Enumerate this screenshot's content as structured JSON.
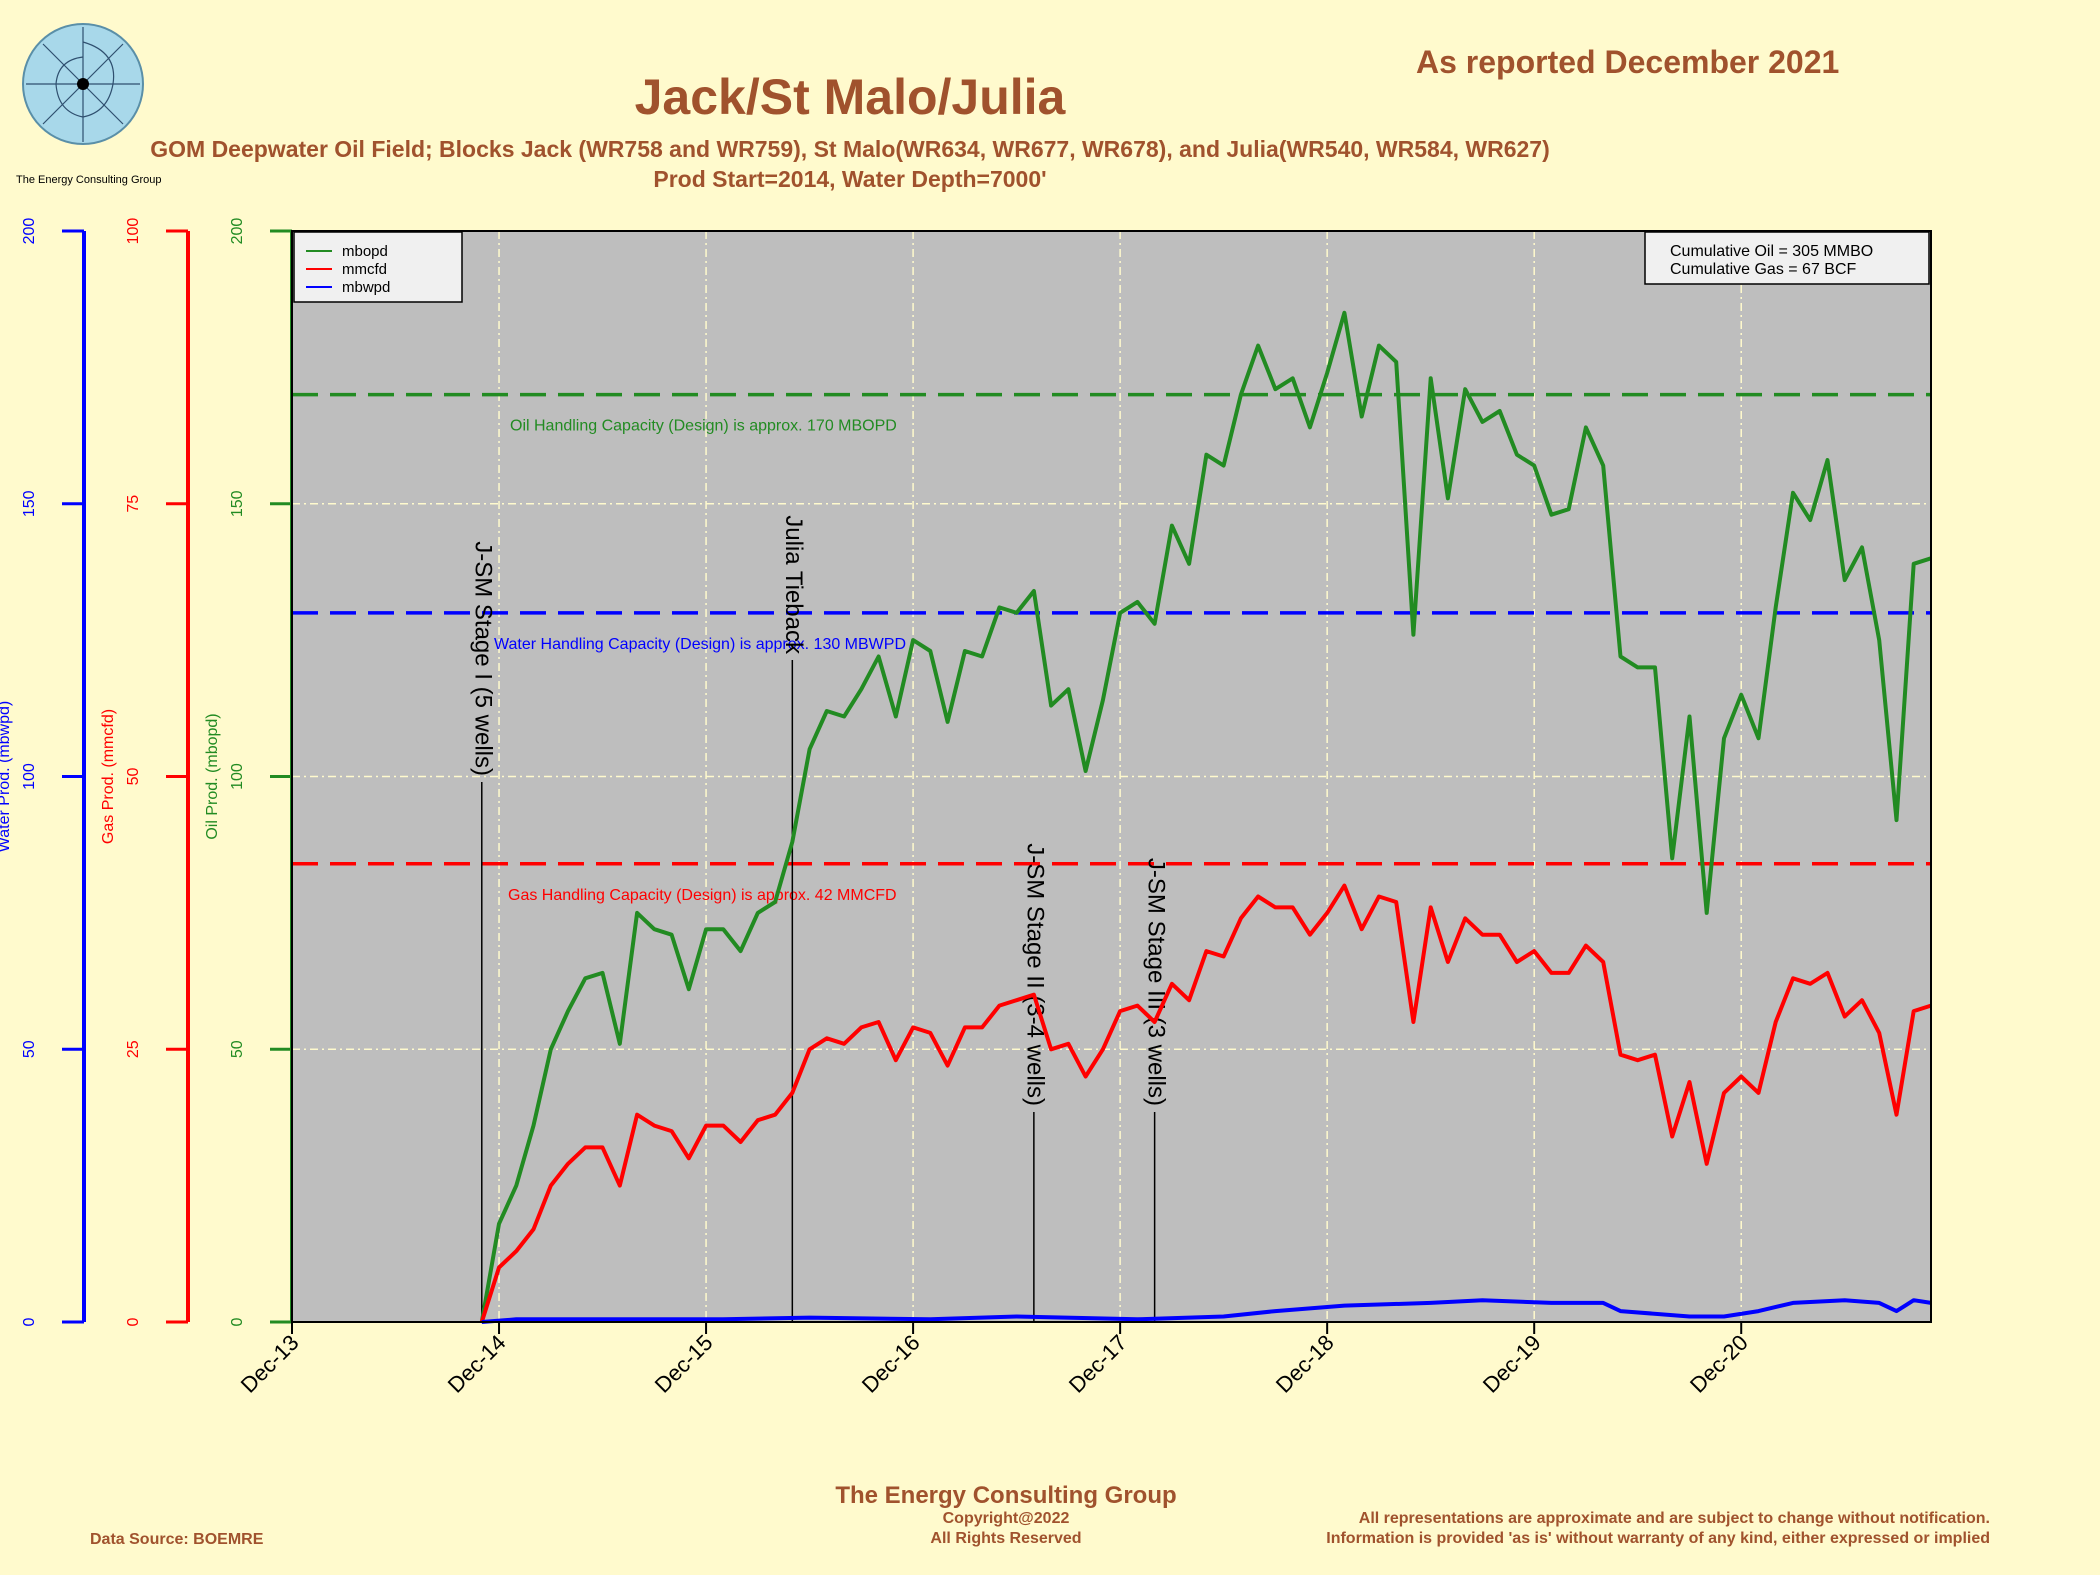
{
  "header": {
    "title": "Jack/St Malo/Julia",
    "reported": "As reported December 2021",
    "subtitle1": "GOM Deepwater Oil Field; Blocks Jack (WR758 and WR759), St Malo(WR634, WR677, WR678), and Julia(WR540, WR584, WR627)",
    "subtitle2": "Prod Start=2014, Water Depth=7000'",
    "logo_caption": "The Energy Consulting Group"
  },
  "footer": {
    "company": "The Energy Consulting Group",
    "copyright": "Copyright@2022",
    "rights": "All Rights Reserved",
    "source": "Data Source: BOEMRE",
    "disclaimer1": "All representations are approximate and are subject to change without notification.",
    "disclaimer2": "Information is provided 'as is' without warranty of any kind, either expressed or implied"
  },
  "colors": {
    "oil": "#228B22",
    "gas": "#FF0000",
    "water": "#0000FF",
    "plot_bg": "#BEBEBE",
    "page_bg": "#FFFACD",
    "brand": "#A0522D"
  },
  "chart_data": {
    "type": "line",
    "x_ticks": [
      "Dec-13",
      "Dec-14",
      "Dec-15",
      "Dec-16",
      "Dec-17",
      "Dec-18",
      "Dec-19",
      "Dec-20"
    ],
    "x_range": [
      "2013-12",
      "2021-11"
    ],
    "axes": {
      "oil": {
        "label": "Oil Prod. (mbopd)",
        "range": [
          0,
          200
        ],
        "ticks": [
          0,
          50,
          100,
          150,
          200
        ]
      },
      "gas": {
        "label": "Gas Prod. (mmcfd)",
        "range": [
          0,
          100
        ],
        "ticks": [
          0,
          25,
          50,
          75,
          100
        ]
      },
      "water": {
        "label": "Water Prod. (mbwpd)",
        "range": [
          0,
          200
        ],
        "ticks": [
          0,
          50,
          100,
          150,
          200
        ]
      }
    },
    "grid": true,
    "legend_position": "top-left",
    "legend": [
      "mbopd",
      "mmcfd",
      "mbwpd"
    ],
    "cumulative": [
      "Cumulative Oil = 305  MMBO",
      "Cumulative Gas = 67  BCF"
    ],
    "series": [
      {
        "name": "mbopd",
        "axis": "oil",
        "color": "#228B22",
        "values": [
          [
            "2014-11",
            0
          ],
          [
            "2014-12",
            18
          ],
          [
            "2015-01",
            25
          ],
          [
            "2015-02",
            36
          ],
          [
            "2015-03",
            50
          ],
          [
            "2015-04",
            57
          ],
          [
            "2015-05",
            63
          ],
          [
            "2015-06",
            64
          ],
          [
            "2015-07",
            51
          ],
          [
            "2015-08",
            75
          ],
          [
            "2015-09",
            72
          ],
          [
            "2015-10",
            71
          ],
          [
            "2015-11",
            61
          ],
          [
            "2015-12",
            72
          ],
          [
            "2016-01",
            72
          ],
          [
            "2016-02",
            68
          ],
          [
            "2016-03",
            75
          ],
          [
            "2016-04",
            77
          ],
          [
            "2016-05",
            88
          ],
          [
            "2016-06",
            105
          ],
          [
            "2016-07",
            112
          ],
          [
            "2016-08",
            111
          ],
          [
            "2016-09",
            116
          ],
          [
            "2016-10",
            122
          ],
          [
            "2016-11",
            111
          ],
          [
            "2016-12",
            125
          ],
          [
            "2017-01",
            123
          ],
          [
            "2017-02",
            110
          ],
          [
            "2017-03",
            123
          ],
          [
            "2017-04",
            122
          ],
          [
            "2017-05",
            131
          ],
          [
            "2017-06",
            130
          ],
          [
            "2017-07",
            134
          ],
          [
            "2017-08",
            113
          ],
          [
            "2017-09",
            116
          ],
          [
            "2017-10",
            101
          ],
          [
            "2017-11",
            114
          ],
          [
            "2017-12",
            130
          ],
          [
            "2018-01",
            132
          ],
          [
            "2018-02",
            128
          ],
          [
            "2018-03",
            146
          ],
          [
            "2018-04",
            139
          ],
          [
            "2018-05",
            159
          ],
          [
            "2018-06",
            157
          ],
          [
            "2018-07",
            170
          ],
          [
            "2018-08",
            179
          ],
          [
            "2018-09",
            171
          ],
          [
            "2018-10",
            173
          ],
          [
            "2018-11",
            164
          ],
          [
            "2018-12",
            174
          ],
          [
            "2019-01",
            185
          ],
          [
            "2019-02",
            166
          ],
          [
            "2019-03",
            179
          ],
          [
            "2019-04",
            176
          ],
          [
            "2019-05",
            126
          ],
          [
            "2019-06",
            173
          ],
          [
            "2019-07",
            151
          ],
          [
            "2019-08",
            171
          ],
          [
            "2019-09",
            165
          ],
          [
            "2019-10",
            167
          ],
          [
            "2019-11",
            159
          ],
          [
            "2019-12",
            157
          ],
          [
            "2020-01",
            148
          ],
          [
            "2020-02",
            149
          ],
          [
            "2020-03",
            164
          ],
          [
            "2020-04",
            157
          ],
          [
            "2020-05",
            122
          ],
          [
            "2020-06",
            120
          ],
          [
            "2020-07",
            120
          ],
          [
            "2020-08",
            85
          ],
          [
            "2020-09",
            111
          ],
          [
            "2020-10",
            75
          ],
          [
            "2020-11",
            107
          ],
          [
            "2020-12",
            115
          ],
          [
            "2021-01",
            107
          ],
          [
            "2021-02",
            131
          ],
          [
            "2021-03",
            152
          ],
          [
            "2021-04",
            147
          ],
          [
            "2021-05",
            158
          ],
          [
            "2021-06",
            136
          ],
          [
            "2021-07",
            142
          ],
          [
            "2021-08",
            125
          ],
          [
            "2021-09",
            92
          ],
          [
            "2021-10",
            139
          ],
          [
            "2021-11",
            140
          ]
        ]
      },
      {
        "name": "mmcfd",
        "axis": "gas",
        "color": "#FF0000",
        "values": [
          [
            "2014-11",
            0
          ],
          [
            "2014-12",
            5
          ],
          [
            "2015-01",
            6.5
          ],
          [
            "2015-02",
            8.5
          ],
          [
            "2015-03",
            12.5
          ],
          [
            "2015-04",
            14.5
          ],
          [
            "2015-05",
            16
          ],
          [
            "2015-06",
            16
          ],
          [
            "2015-07",
            12.5
          ],
          [
            "2015-08",
            19
          ],
          [
            "2015-09",
            18
          ],
          [
            "2015-10",
            17.5
          ],
          [
            "2015-11",
            15
          ],
          [
            "2015-12",
            18
          ],
          [
            "2016-01",
            18
          ],
          [
            "2016-02",
            16.5
          ],
          [
            "2016-03",
            18.5
          ],
          [
            "2016-04",
            19
          ],
          [
            "2016-05",
            21
          ],
          [
            "2016-06",
            25
          ],
          [
            "2016-07",
            26
          ],
          [
            "2016-08",
            25.5
          ],
          [
            "2016-09",
            27
          ],
          [
            "2016-10",
            27.5
          ],
          [
            "2016-11",
            24
          ],
          [
            "2016-12",
            27
          ],
          [
            "2017-01",
            26.5
          ],
          [
            "2017-02",
            23.5
          ],
          [
            "2017-03",
            27
          ],
          [
            "2017-04",
            27
          ],
          [
            "2017-05",
            29
          ],
          [
            "2017-06",
            29.5
          ],
          [
            "2017-07",
            30
          ],
          [
            "2017-08",
            25
          ],
          [
            "2017-09",
            25.5
          ],
          [
            "2017-10",
            22.5
          ],
          [
            "2017-11",
            25
          ],
          [
            "2017-12",
            28.5
          ],
          [
            "2018-01",
            29
          ],
          [
            "2018-02",
            27.5
          ],
          [
            "2018-03",
            31
          ],
          [
            "2018-04",
            29.5
          ],
          [
            "2018-05",
            34
          ],
          [
            "2018-06",
            33.5
          ],
          [
            "2018-07",
            37
          ],
          [
            "2018-08",
            39
          ],
          [
            "2018-09",
            38
          ],
          [
            "2018-10",
            38
          ],
          [
            "2018-11",
            35.5
          ],
          [
            "2018-12",
            37.5
          ],
          [
            "2019-01",
            40
          ],
          [
            "2019-02",
            36
          ],
          [
            "2019-03",
            39
          ],
          [
            "2019-04",
            38.5
          ],
          [
            "2019-05",
            27.5
          ],
          [
            "2019-06",
            38
          ],
          [
            "2019-07",
            33
          ],
          [
            "2019-08",
            37
          ],
          [
            "2019-09",
            35.5
          ],
          [
            "2019-10",
            35.5
          ],
          [
            "2019-11",
            33
          ],
          [
            "2019-12",
            34
          ],
          [
            "2020-01",
            32
          ],
          [
            "2020-02",
            32
          ],
          [
            "2020-03",
            34.5
          ],
          [
            "2020-04",
            33
          ],
          [
            "2020-05",
            24.5
          ],
          [
            "2020-06",
            24
          ],
          [
            "2020-07",
            24.5
          ],
          [
            "2020-08",
            17
          ],
          [
            "2020-09",
            22
          ],
          [
            "2020-10",
            14.5
          ],
          [
            "2020-11",
            21
          ],
          [
            "2020-12",
            22.5
          ],
          [
            "2021-01",
            21
          ],
          [
            "2021-02",
            27.5
          ],
          [
            "2021-03",
            31.5
          ],
          [
            "2021-04",
            31
          ],
          [
            "2021-05",
            32
          ],
          [
            "2021-06",
            28
          ],
          [
            "2021-07",
            29.5
          ],
          [
            "2021-08",
            26.5
          ],
          [
            "2021-09",
            19
          ],
          [
            "2021-10",
            28.5
          ],
          [
            "2021-11",
            29
          ]
        ]
      },
      {
        "name": "mbwpd",
        "axis": "water",
        "color": "#0000FF",
        "values": [
          [
            "2014-11",
            0
          ],
          [
            "2015-01",
            0.5
          ],
          [
            "2015-06",
            0.5
          ],
          [
            "2016-01",
            0.5
          ],
          [
            "2016-06",
            0.8
          ],
          [
            "2017-01",
            0.5
          ],
          [
            "2017-06",
            1
          ],
          [
            "2018-01",
            0.5
          ],
          [
            "2018-06",
            1
          ],
          [
            "2018-09",
            2
          ],
          [
            "2019-01",
            3
          ],
          [
            "2019-06",
            3.5
          ],
          [
            "2019-09",
            4
          ],
          [
            "2020-01",
            3.5
          ],
          [
            "2020-04",
            3.5
          ],
          [
            "2020-05",
            2
          ],
          [
            "2020-09",
            1
          ],
          [
            "2020-11",
            1
          ],
          [
            "2021-01",
            2
          ],
          [
            "2021-03",
            3.5
          ],
          [
            "2021-06",
            4
          ],
          [
            "2021-08",
            3.5
          ],
          [
            "2021-09",
            2
          ],
          [
            "2021-10",
            4
          ],
          [
            "2021-11",
            3.5
          ]
        ]
      }
    ],
    "capacity_lines": [
      {
        "axis": "oil",
        "value": 170,
        "color": "#228B22",
        "label": "Oil Handling Capacity (Design) is approx. 170 MBOPD"
      },
      {
        "axis": "water",
        "value": 130,
        "color": "#0000FF",
        "label": "Water Handling Capacity (Design) is approx. 130 MBWPD"
      },
      {
        "axis": "gas",
        "value": 42,
        "color": "#FF0000",
        "label": "Gas Handling Capacity (Design) is approx. 42 MMCFD"
      }
    ],
    "events": [
      {
        "date": "2014-11",
        "label": "J-SM Stage I (5 wells)"
      },
      {
        "date": "2016-05",
        "label": "Julia Tieback"
      },
      {
        "date": "2017-07",
        "label": "J-SM Stage II (3-4 wells)"
      },
      {
        "date": "2018-02",
        "label": "J-SM Stage III (3 wells)"
      }
    ]
  }
}
